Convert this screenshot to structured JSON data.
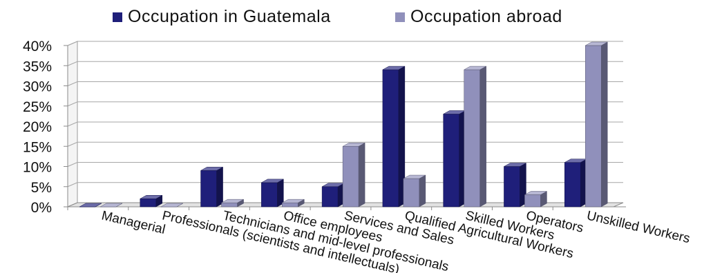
{
  "chart_data": {
    "type": "bar",
    "title": "",
    "xlabel": "",
    "ylabel": "",
    "categories": [
      "Managerial",
      "Professionals (scientists and intellectuals)",
      "Technicians and mid-level professionals",
      "Office employees",
      "Services and Sales",
      "Qualified Agricultural Workers",
      "Skilled Workers",
      "Operators",
      "Unskilled Workers"
    ],
    "series": [
      {
        "name": "Occupation in Guatemala",
        "values": [
          0,
          2,
          9,
          6,
          5,
          34,
          23,
          10,
          11
        ]
      },
      {
        "name": "Occupation abroad",
        "values": [
          0,
          0,
          1,
          1,
          15,
          7,
          34,
          3,
          40
        ]
      }
    ],
    "ylim": [
      0,
      40
    ],
    "yticks": [
      0,
      5,
      10,
      15,
      20,
      25,
      30,
      35,
      40
    ],
    "ytick_labels": [
      "0%",
      "5%",
      "10%",
      "15%",
      "20%",
      "25%",
      "30%",
      "35%",
      "40%"
    ],
    "grid": true,
    "legend_position": "top",
    "style": "3d-column",
    "colors": [
      "#1f1f7a",
      "#9090bb"
    ]
  }
}
